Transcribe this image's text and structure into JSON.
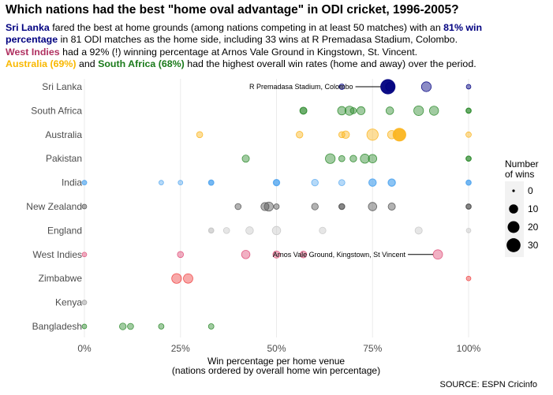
{
  "title": "Which nations had the best \"home oval advantage\" in ODI cricket, 1996-2005?",
  "subtitle": {
    "line1": [
      {
        "text": "Sri Lanka",
        "color": "#000080",
        "bold": true
      },
      {
        "text": " fared the best at home grounds (among nations competing in at least 50 matches) with an ",
        "color": "#000000",
        "bold": false
      },
      {
        "text": "81% win",
        "color": "#000080",
        "bold": true
      }
    ],
    "line2": [
      {
        "text": "percentage",
        "color": "#000080",
        "bold": true
      },
      {
        "text": " in 81 ODI matches as the home side, including 33 wins at R Premadasa Stadium, Colombo.",
        "color": "#000000",
        "bold": false
      }
    ],
    "line3": [
      {
        "text": "West Indies",
        "color": "#b03060",
        "bold": true
      },
      {
        "text": " had a 92% (!) winning percentage at Arnos Vale Ground in Kingstown, St. Vincent.",
        "color": "#000000",
        "bold": false
      }
    ],
    "line4": [
      {
        "text": "Australia (69%)",
        "color": "#f9b800",
        "bold": true
      },
      {
        "text": " and ",
        "color": "#000000",
        "bold": false
      },
      {
        "text": "South Africa (68%)",
        "color": "#1a7a1a",
        "bold": true
      },
      {
        "text": " had the highest overall win rates (home and away) over the period.",
        "color": "#000000",
        "bold": false
      }
    ]
  },
  "caption": "SOURCE: ESPN Cricinfo",
  "chart_data": {
    "type": "scatter",
    "xlabel": "Win percentage per home venue",
    "xlabel_note": "(nations ordered by overall home win percentage)",
    "xlim": [
      0,
      1
    ],
    "x_ticks": [
      0,
      0.25,
      0.5,
      0.75,
      1.0
    ],
    "x_tick_labels": [
      "0%",
      "25%",
      "50%",
      "75%",
      "100%"
    ],
    "categories": [
      "Sri Lanka",
      "South Africa",
      "Australia",
      "Pakistan",
      "India",
      "New Zealand",
      "England",
      "West Indies",
      "Zimbabwe",
      "Kenya",
      "Bangladesh"
    ],
    "grid": "vertical",
    "size_legend": {
      "title": "Number of wins",
      "title_lines": [
        "Number",
        "of wins"
      ],
      "values": [
        0,
        10,
        20,
        30
      ],
      "position": "right"
    },
    "series": [
      {
        "nation": "Sri Lanka",
        "color": "#000080",
        "points": [
          {
            "x": 0.79,
            "wins": 33
          },
          {
            "x": 0.89,
            "wins": 12
          },
          {
            "x": 0.795,
            "wins": 8
          },
          {
            "x": 0.67,
            "wins": 2
          },
          {
            "x": 1.0,
            "wins": 1
          }
        ]
      },
      {
        "nation": "South Africa",
        "color": "#2e8b2e",
        "points": [
          {
            "x": 0.87,
            "wins": 12
          },
          {
            "x": 0.91,
            "wins": 10
          },
          {
            "x": 0.69,
            "wins": 10
          },
          {
            "x": 0.67,
            "wins": 8
          },
          {
            "x": 0.72,
            "wins": 7
          },
          {
            "x": 0.795,
            "wins": 6
          },
          {
            "x": 0.57,
            "wins": 5
          },
          {
            "x": 0.57,
            "wins": 4
          },
          {
            "x": 0.7,
            "wins": 3
          },
          {
            "x": 1.0,
            "wins": 2
          },
          {
            "x": 1.0,
            "wins": 1
          }
        ]
      },
      {
        "nation": "Australia",
        "color": "#fbb520",
        "points": [
          {
            "x": 0.82,
            "wins": 25
          },
          {
            "x": 0.75,
            "wins": 18
          },
          {
            "x": 0.8,
            "wins": 8
          },
          {
            "x": 0.68,
            "wins": 6
          },
          {
            "x": 0.56,
            "wins": 4
          },
          {
            "x": 0.67,
            "wins": 3
          },
          {
            "x": 0.3,
            "wins": 3
          },
          {
            "x": 1.0,
            "wins": 2
          }
        ]
      },
      {
        "nation": "Pakistan",
        "color": "#2e8b2e",
        "points": [
          {
            "x": 0.64,
            "wins": 12
          },
          {
            "x": 0.73,
            "wins": 10
          },
          {
            "x": 0.75,
            "wins": 8
          },
          {
            "x": 0.42,
            "wins": 5
          },
          {
            "x": 0.7,
            "wins": 4
          },
          {
            "x": 0.67,
            "wins": 3
          },
          {
            "x": 1.0,
            "wins": 2
          },
          {
            "x": 1.0,
            "wins": 1
          }
        ]
      },
      {
        "nation": "India",
        "color": "#5aaaf0",
        "points": [
          {
            "x": 0.75,
            "wins": 6
          },
          {
            "x": 0.8,
            "wins": 6
          },
          {
            "x": 0.75,
            "wins": 5
          },
          {
            "x": 0.5,
            "wins": 4
          },
          {
            "x": 0.6,
            "wins": 4
          },
          {
            "x": 0.67,
            "wins": 3
          },
          {
            "x": 0.8,
            "wins": 4
          },
          {
            "x": 0.5,
            "wins": 3
          },
          {
            "x": 0.5,
            "wins": 2
          },
          {
            "x": 0.33,
            "wins": 2
          },
          {
            "x": 0.33,
            "wins": 2
          },
          {
            "x": 0.2,
            "wins": 1
          },
          {
            "x": 0.25,
            "wins": 1
          },
          {
            "x": 1.0,
            "wins": 2
          },
          {
            "x": 1.0,
            "wins": 1
          },
          {
            "x": 0.0,
            "wins": 1
          },
          {
            "x": 0.0,
            "wins": 1
          },
          {
            "x": 0.33,
            "wins": 1
          },
          {
            "x": 1.0,
            "wins": 1
          }
        ]
      },
      {
        "nation": "New Zealand",
        "color": "#555555",
        "points": [
          {
            "x": 0.48,
            "wins": 10
          },
          {
            "x": 0.75,
            "wins": 8
          },
          {
            "x": 0.47,
            "wins": 7
          },
          {
            "x": 0.8,
            "wins": 5
          },
          {
            "x": 0.6,
            "wins": 4
          },
          {
            "x": 0.67,
            "wins": 3
          },
          {
            "x": 0.4,
            "wins": 3
          },
          {
            "x": 0.67,
            "wins": 2
          },
          {
            "x": 0.5,
            "wins": 2
          },
          {
            "x": 1.0,
            "wins": 2
          },
          {
            "x": 1.0,
            "wins": 1
          },
          {
            "x": 0.0,
            "wins": 1
          }
        ]
      },
      {
        "nation": "England",
        "color": "#c8c8c8",
        "points": [
          {
            "x": 0.5,
            "wins": 8
          },
          {
            "x": 0.43,
            "wins": 6
          },
          {
            "x": 0.87,
            "wins": 5
          },
          {
            "x": 0.62,
            "wins": 4
          },
          {
            "x": 0.37,
            "wins": 3
          },
          {
            "x": 0.33,
            "wins": 2
          },
          {
            "x": 0.33,
            "wins": 1
          },
          {
            "x": 1.0,
            "wins": 1
          }
        ]
      },
      {
        "nation": "West Indies",
        "color": "#e0507a",
        "points": [
          {
            "x": 0.92,
            "wins": 11
          },
          {
            "x": 0.42,
            "wins": 8
          },
          {
            "x": 0.5,
            "wins": 5
          },
          {
            "x": 0.57,
            "wins": 4
          },
          {
            "x": 0.25,
            "wins": 3
          },
          {
            "x": 0.0,
            "wins": 1
          }
        ]
      },
      {
        "nation": "Zimbabwe",
        "color": "#f04040",
        "points": [
          {
            "x": 0.24,
            "wins": 12
          },
          {
            "x": 0.27,
            "wins": 11
          },
          {
            "x": 1.0,
            "wins": 1
          }
        ]
      },
      {
        "nation": "Kenya",
        "color": "#9a9a9a",
        "points": [
          {
            "x": 0.0,
            "wins": 1
          }
        ]
      },
      {
        "nation": "Bangladesh",
        "color": "#2e8b2e",
        "points": [
          {
            "x": 0.1,
            "wins": 4
          },
          {
            "x": 0.12,
            "wins": 3
          },
          {
            "x": 0.2,
            "wins": 2
          },
          {
            "x": 0.33,
            "wins": 2
          },
          {
            "x": 0.0,
            "wins": 1
          }
        ]
      }
    ],
    "annotations": [
      {
        "nation": "Sri Lanka",
        "x": 0.79,
        "text": "R Premadasa Stadium, Colombo"
      },
      {
        "nation": "West Indies",
        "x": 0.92,
        "text": "Arnos Vale Ground, Kingstown, St Vincent"
      }
    ]
  }
}
